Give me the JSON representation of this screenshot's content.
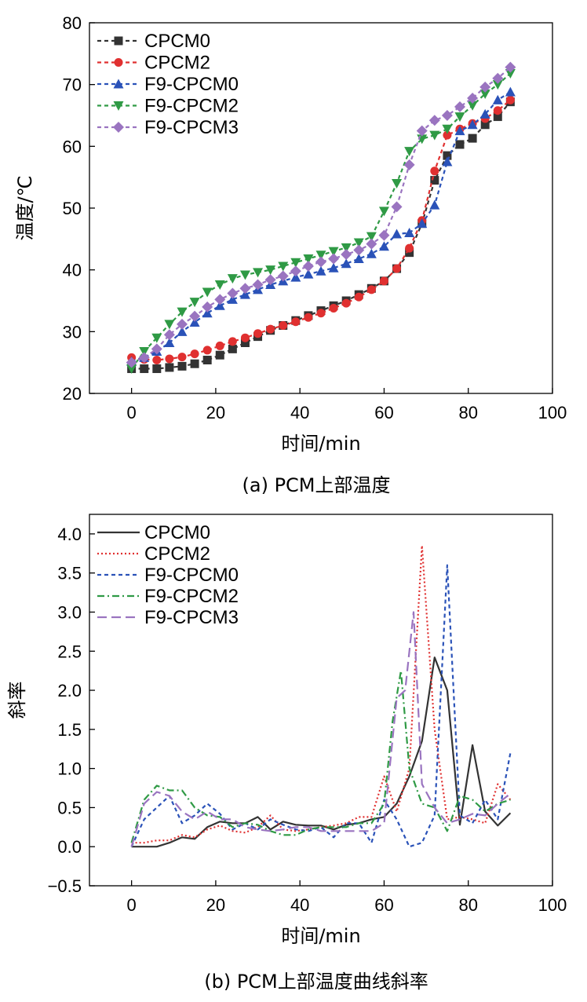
{
  "chart_data": [
    {
      "type": "line",
      "title": "",
      "caption": "(a) PCM上部温度",
      "xlabel": "时间/min",
      "ylabel": "温度/℃",
      "xlim": [
        -10,
        100
      ],
      "ylim": [
        20,
        80
      ],
      "xticks": [
        0,
        20,
        40,
        60,
        80,
        100
      ],
      "yticks": [
        20,
        30,
        40,
        50,
        60,
        70,
        80
      ],
      "legend_position": "top-left",
      "x": [
        0,
        3,
        6,
        9,
        12,
        15,
        18,
        21,
        24,
        27,
        30,
        33,
        36,
        39,
        42,
        45,
        48,
        51,
        54,
        57,
        60,
        63,
        66,
        69,
        72,
        75,
        78,
        81,
        84,
        87,
        90
      ],
      "series": [
        {
          "name": "CPCM0",
          "color": "#333333",
          "marker": "square",
          "dash": "5,4",
          "values": [
            24.0,
            24.0,
            24.0,
            24.2,
            24.4,
            24.8,
            25.4,
            26.2,
            27.2,
            28.2,
            29.2,
            30.2,
            31.0,
            31.8,
            32.6,
            33.4,
            34.2,
            35.0,
            36.0,
            37.0,
            38.2,
            40.2,
            42.8,
            47.5,
            54.5,
            58.5,
            60.3,
            61.3,
            63.5,
            64.8,
            67.2
          ]
        },
        {
          "name": "CPCM2",
          "color": "#e03030",
          "marker": "circle",
          "dash": "5,4",
          "values": [
            25.8,
            25.5,
            25.4,
            25.6,
            25.9,
            26.4,
            27.0,
            27.7,
            28.4,
            29.0,
            29.7,
            30.4,
            31.0,
            31.6,
            32.3,
            33.0,
            33.8,
            34.6,
            35.6,
            36.8,
            38.2,
            40.2,
            43.5,
            48.0,
            56.0,
            61.8,
            62.8,
            63.7,
            64.5,
            65.8,
            67.5
          ]
        },
        {
          "name": "F9-CPCM0",
          "color": "#2a52b8",
          "marker": "triangle-up",
          "dash": "5,4",
          "values": [
            25.2,
            25.8,
            26.8,
            28.2,
            30.0,
            31.5,
            33.0,
            34.2,
            35.2,
            36.0,
            36.8,
            37.6,
            38.2,
            38.8,
            39.3,
            39.8,
            40.3,
            41.0,
            41.8,
            42.6,
            43.8,
            45.8,
            46.0,
            47.5,
            50.5,
            57.5,
            62.5,
            63.5,
            65.2,
            67.5,
            68.8
          ]
        },
        {
          "name": "F9-CPCM2",
          "color": "#2f9a45",
          "marker": "triangle-down",
          "dash": "5,4",
          "values": [
            24.0,
            26.8,
            29.0,
            31.2,
            33.2,
            34.8,
            36.4,
            37.6,
            38.6,
            39.2,
            39.6,
            40.0,
            40.6,
            41.2,
            41.8,
            42.4,
            43.0,
            43.6,
            44.4,
            45.4,
            49.5,
            54.0,
            59.2,
            61.2,
            61.8,
            62.8,
            64.8,
            66.6,
            68.5,
            70.0,
            71.8
          ]
        },
        {
          "name": "F9-CPCM3",
          "color": "#9a74c0",
          "marker": "diamond",
          "dash": "5,4",
          "values": [
            25.0,
            25.8,
            27.2,
            29.5,
            31.2,
            32.5,
            34.0,
            35.2,
            36.2,
            37.0,
            37.6,
            38.4,
            39.0,
            39.8,
            40.6,
            41.3,
            41.8,
            42.5,
            43.2,
            44.2,
            45.6,
            50.2,
            57.0,
            62.5,
            64.2,
            65.0,
            66.4,
            67.8,
            69.6,
            71.0,
            72.8
          ]
        }
      ]
    },
    {
      "type": "line",
      "title": "",
      "caption": "(b) PCM上部温度曲线斜率",
      "xlabel": "时间/min",
      "ylabel": "斜率",
      "xlim": [
        -10,
        100
      ],
      "ylim": [
        -0.5,
        4.25
      ],
      "xticks": [
        0,
        20,
        40,
        60,
        80,
        100
      ],
      "yticks": [
        -0.5,
        0.0,
        0.5,
        1.0,
        1.5,
        2.0,
        2.5,
        3.0,
        3.5,
        4.0
      ],
      "ytick_labels": [
        "−0.5",
        "0.0",
        "0.5",
        "1.0",
        "1.5",
        "2.0",
        "2.5",
        "3.0",
        "3.5",
        "4.0"
      ],
      "legend_position": "top-left",
      "series": [
        {
          "name": "CPCM0",
          "color": "#333333",
          "dash": "",
          "x": [
            0,
            3,
            6,
            9,
            12,
            15,
            18,
            21,
            24,
            27,
            30,
            33,
            36,
            39,
            42,
            45,
            48,
            51,
            54,
            57,
            60,
            63,
            66,
            69,
            72,
            75,
            78,
            81,
            84,
            87,
            90
          ],
          "values": [
            0.0,
            0.0,
            0.0,
            0.05,
            0.12,
            0.1,
            0.25,
            0.32,
            0.3,
            0.3,
            0.38,
            0.22,
            0.32,
            0.28,
            0.27,
            0.27,
            0.22,
            0.28,
            0.3,
            0.35,
            0.38,
            0.55,
            0.9,
            1.35,
            2.42,
            2.0,
            0.28,
            1.3,
            0.45,
            0.27,
            0.43
          ]
        },
        {
          "name": "CPCM2",
          "color": "#e03030",
          "dash": "2,3",
          "x": [
            0,
            3,
            6,
            9,
            12,
            15,
            18,
            21,
            24,
            27,
            30,
            33,
            36,
            39,
            42,
            45,
            48,
            51,
            54,
            57,
            60,
            63,
            66,
            69,
            72,
            75,
            78,
            81,
            84,
            87,
            90
          ],
          "values": [
            0.05,
            0.05,
            0.08,
            0.08,
            0.15,
            0.12,
            0.22,
            0.27,
            0.2,
            0.18,
            0.25,
            0.4,
            0.22,
            0.2,
            0.22,
            0.25,
            0.27,
            0.3,
            0.38,
            0.38,
            0.9,
            0.45,
            1.0,
            3.85,
            1.5,
            0.35,
            0.38,
            0.35,
            0.3,
            0.8,
            0.6
          ]
        },
        {
          "name": "F9-CPCM0",
          "color": "#2a52b8",
          "dash": "5,4",
          "x": [
            0,
            3,
            6,
            9,
            12,
            15,
            18,
            21,
            24,
            27,
            30,
            33,
            36,
            39,
            42,
            45,
            48,
            51,
            54,
            57,
            60,
            63,
            66,
            69,
            72,
            75,
            78,
            81,
            84,
            87,
            90
          ],
          "values": [
            0.0,
            0.35,
            0.5,
            0.65,
            0.3,
            0.4,
            0.55,
            0.42,
            0.22,
            0.3,
            0.22,
            0.35,
            0.28,
            0.22,
            0.2,
            0.25,
            0.12,
            0.3,
            0.3,
            0.05,
            0.6,
            0.35,
            0.0,
            0.05,
            0.4,
            3.6,
            0.4,
            0.3,
            0.6,
            0.35,
            1.2
          ]
        },
        {
          "name": "F9-CPCM2",
          "color": "#2f9a45",
          "dash": "9,4,2,4",
          "x": [
            0,
            3,
            6,
            9,
            12,
            15,
            18,
            21,
            24,
            27,
            30,
            33,
            36,
            39,
            42,
            45,
            48,
            51,
            54,
            57,
            60,
            62,
            64,
            66,
            69,
            72,
            75,
            78,
            81,
            84,
            87,
            90
          ],
          "values": [
            0.05,
            0.6,
            0.78,
            0.72,
            0.72,
            0.5,
            0.4,
            0.38,
            0.25,
            0.3,
            0.28,
            0.2,
            0.15,
            0.15,
            0.22,
            0.25,
            0.25,
            0.25,
            0.3,
            0.3,
            0.55,
            1.6,
            2.25,
            1.0,
            0.55,
            0.5,
            0.2,
            0.65,
            0.6,
            0.45,
            0.55,
            0.6
          ]
        },
        {
          "name": "F9-CPCM3",
          "color": "#9a74c0",
          "dash": "12,6",
          "x": [
            0,
            3,
            6,
            9,
            12,
            15,
            18,
            21,
            24,
            27,
            30,
            33,
            36,
            39,
            42,
            45,
            48,
            51,
            54,
            57,
            60,
            63,
            65,
            67,
            69,
            72,
            75,
            78,
            81,
            84,
            87,
            90
          ],
          "values": [
            0.0,
            0.55,
            0.7,
            0.65,
            0.45,
            0.35,
            0.45,
            0.35,
            0.35,
            0.25,
            0.22,
            0.2,
            0.22,
            0.25,
            0.25,
            0.2,
            0.2,
            0.2,
            0.2,
            0.2,
            0.3,
            1.9,
            2.0,
            3.0,
            0.8,
            0.5,
            0.3,
            0.35,
            0.42,
            0.4,
            0.55,
            0.68
          ]
        }
      ]
    }
  ]
}
